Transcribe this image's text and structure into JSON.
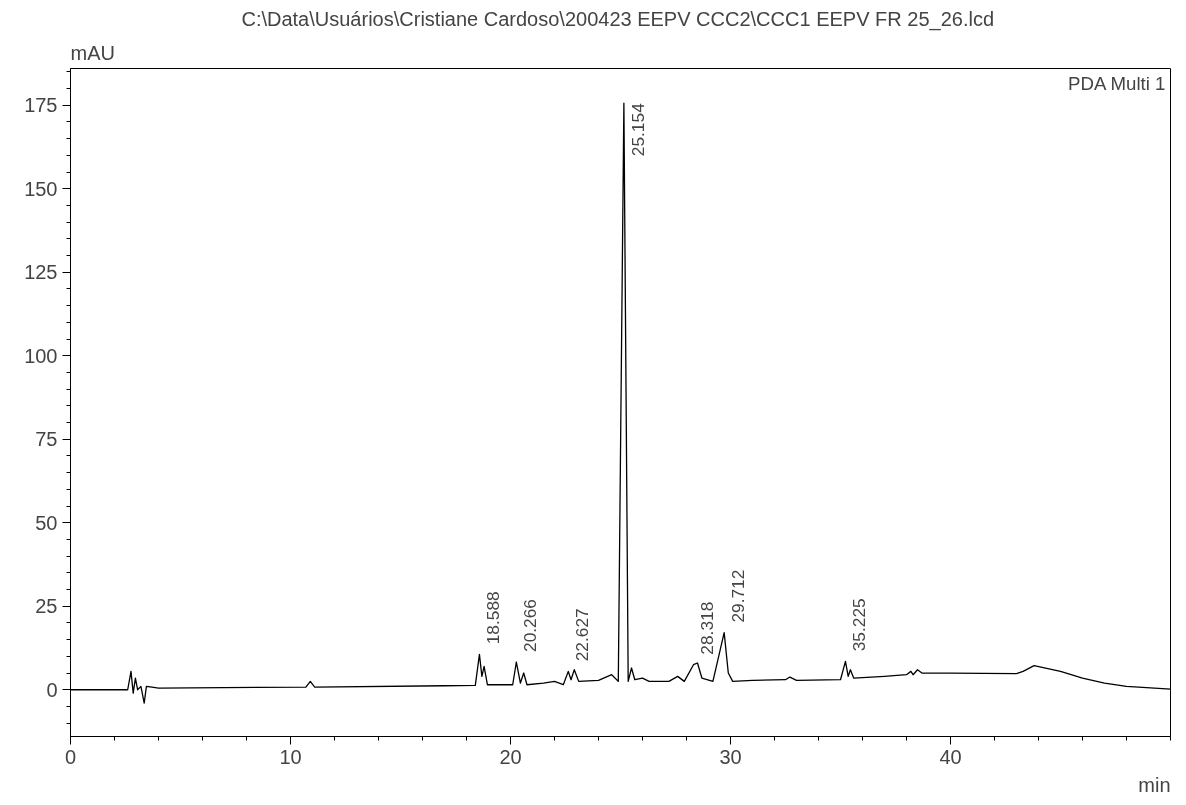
{
  "chart_data": {
    "type": "line",
    "title": "C:\\Data\\Usuários\\Cristiane Cardoso\\200423 EEPV CCC2\\CCC1 EEPV  FR 25_26.lcd",
    "xlabel": "min",
    "ylabel": "mAU",
    "series": [
      {
        "color": "#000000",
        "x": [
          0,
          2.6,
          2.75,
          2.85,
          2.95,
          3.05,
          3.2,
          3.35,
          3.45,
          3.7,
          4,
          10.7,
          10.9,
          11.1,
          17,
          18.4,
          18.588,
          18.7,
          18.8,
          18.95,
          19.5,
          20.1,
          20.266,
          20.45,
          20.6,
          20.75,
          21.5,
          22,
          22.4,
          22.627,
          22.75,
          22.9,
          23.1,
          24,
          24.6,
          24.9,
          25.154,
          25.35,
          25.5,
          25.65,
          26,
          26.3,
          27.2,
          27.6,
          27.9,
          28.318,
          28.5,
          28.7,
          29.2,
          29.712,
          29.9,
          30.1,
          31,
          32.5,
          32.7,
          33,
          35,
          35.225,
          35.35,
          35.45,
          35.6,
          37,
          38,
          38.2,
          38.3,
          38.5,
          38.7,
          40,
          43,
          43.3,
          43.8,
          45,
          46,
          47,
          48,
          50
        ],
        "values": [
          0,
          0,
          5.5,
          -1,
          3.5,
          0,
          1,
          -4,
          1,
          0.8,
          0.5,
          0.8,
          2.5,
          0.8,
          1.2,
          1.3,
          10.6,
          4,
          7,
          1.5,
          1.5,
          1.5,
          8.3,
          2,
          5,
          1.5,
          2,
          2.5,
          1.5,
          5.5,
          3,
          6,
          2.5,
          2.8,
          4.5,
          2.5,
          175.6,
          2.5,
          6.5,
          3,
          3.5,
          2.5,
          2.5,
          4,
          2.5,
          7.5,
          8,
          3.5,
          2.5,
          17.1,
          5,
          2.5,
          2.8,
          3,
          3.8,
          2.8,
          3,
          8.5,
          4,
          6,
          3.5,
          4,
          4.5,
          5.5,
          4.5,
          6,
          5,
          5,
          4.8,
          5.5,
          7.2,
          5.5,
          3.5,
          2,
          1,
          0.2
        ]
      }
    ],
    "xlim": [
      0,
      50
    ],
    "ylim": [
      -14,
      186
    ],
    "xticks": [
      0,
      10,
      20,
      30,
      40
    ],
    "yticks": [
      0,
      25,
      50,
      75,
      100,
      125,
      150,
      175
    ],
    "grid": false,
    "marker": "none",
    "line_style": "solid",
    "annotations": [
      {
        "text": "18.588",
        "x": 18.588,
        "y": 10.6
      },
      {
        "text": "20.266",
        "x": 20.266,
        "y": 8.3
      },
      {
        "text": "22.627",
        "x": 22.627,
        "y": 5.5
      },
      {
        "text": "25.154",
        "x": 25.154,
        "y": 175.6
      },
      {
        "text": "28.318",
        "x": 28.318,
        "y": 7.5
      },
      {
        "text": "29.712",
        "x": 29.712,
        "y": 17.1
      },
      {
        "text": "35.225",
        "x": 35.225,
        "y": 8.5
      },
      "PDA Multi 1"
    ]
  }
}
